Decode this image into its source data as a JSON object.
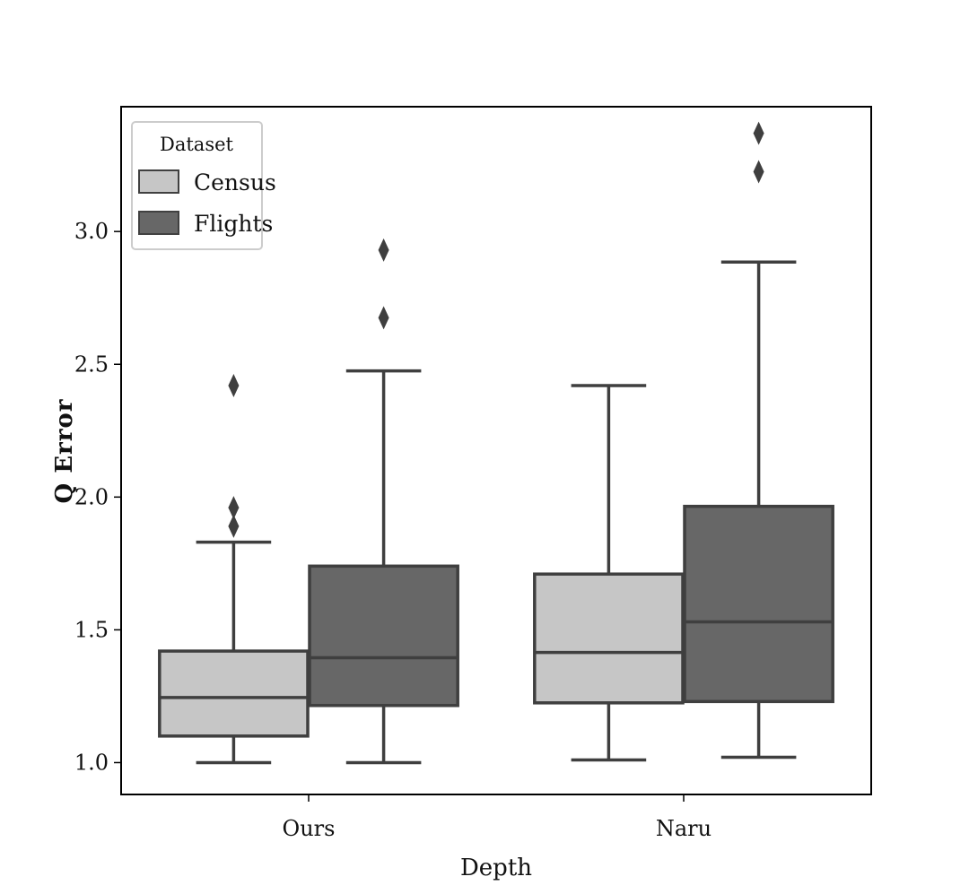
{
  "chart_data": {
    "type": "box",
    "xlabel": "Depth",
    "ylabel": "Q Error",
    "categories": [
      "Ours",
      "Naru"
    ],
    "ylim": [
      0.88,
      3.47
    ],
    "yticks": [
      1.0,
      1.5,
      2.0,
      2.5,
      3.0
    ],
    "ytick_labels": [
      "1.0",
      "1.5",
      "2.0",
      "2.5",
      "3.0"
    ],
    "legend": {
      "title": "Dataset",
      "position": "top-left"
    },
    "series": [
      {
        "name": "Census",
        "color": "#c6c6c6",
        "boxes": [
          {
            "category": "Ours",
            "whisker_low": 1.0,
            "q1": 1.1,
            "median": 1.245,
            "q3": 1.42,
            "whisker_high": 1.83,
            "outliers": [
              1.89,
              1.96,
              2.42
            ]
          },
          {
            "category": "Naru",
            "whisker_low": 1.01,
            "q1": 1.225,
            "median": 1.415,
            "q3": 1.71,
            "whisker_high": 2.42,
            "outliers": []
          }
        ]
      },
      {
        "name": "Flights",
        "color": "#676767",
        "boxes": [
          {
            "category": "Ours",
            "whisker_low": 1.0,
            "q1": 1.215,
            "median": 1.395,
            "q3": 1.74,
            "whisker_high": 2.475,
            "outliers": [
              2.675,
              2.93
            ]
          },
          {
            "category": "Naru",
            "whisker_low": 1.02,
            "q1": 1.23,
            "median": 1.53,
            "q3": 1.965,
            "whisker_high": 2.885,
            "outliers": [
              3.225,
              3.37
            ]
          }
        ]
      }
    ],
    "grid": false
  }
}
